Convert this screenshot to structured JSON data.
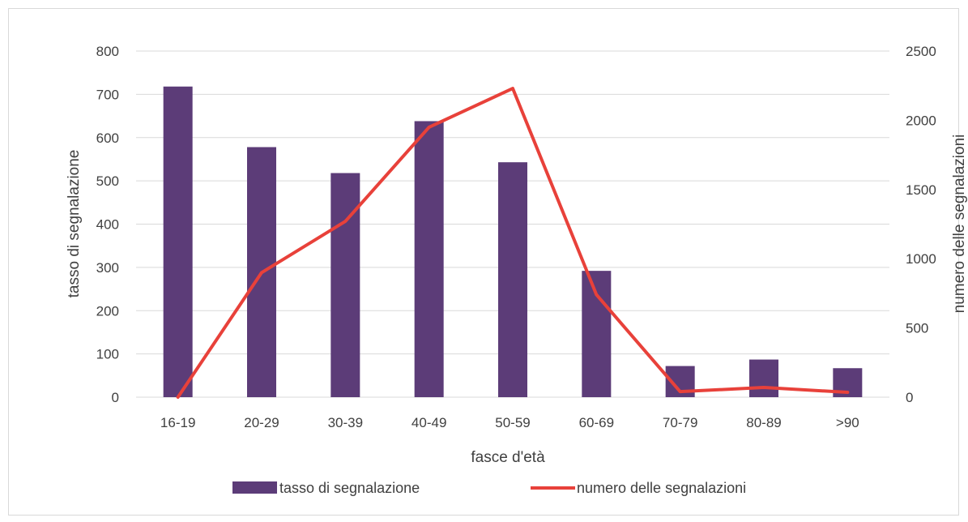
{
  "chart_data": {
    "type": "bar",
    "categories": [
      "16-19",
      "20-29",
      "30-39",
      "40-49",
      "50-59",
      "60-69",
      "70-79",
      "80-89",
      ">90"
    ],
    "series": [
      {
        "name": "tasso di segnalazione",
        "type": "bar",
        "axis": "left",
        "color": "#5c3c78",
        "values": [
          718,
          578,
          518,
          638,
          543,
          292,
          72,
          87,
          67
        ]
      },
      {
        "name": "numero delle segnalazioni",
        "type": "line",
        "axis": "right",
        "color": "#e8413a",
        "values": [
          0,
          900,
          1270,
          1950,
          2230,
          740,
          40,
          70,
          35
        ]
      }
    ],
    "title": "",
    "xlabel": "fasce d'età",
    "ylabel": "tasso di segnalazione",
    "y2label": "numero delle segnalazioni",
    "ylim": [
      0,
      800
    ],
    "y2lim": [
      0,
      2500
    ],
    "yticks": [
      "0",
      "100",
      "200",
      "300",
      "400",
      "500",
      "600",
      "700",
      "800"
    ],
    "y2ticks": [
      "0",
      "500",
      "1000",
      "1500",
      "2000",
      "2500"
    ],
    "grid": true,
    "legend": "bottom"
  }
}
